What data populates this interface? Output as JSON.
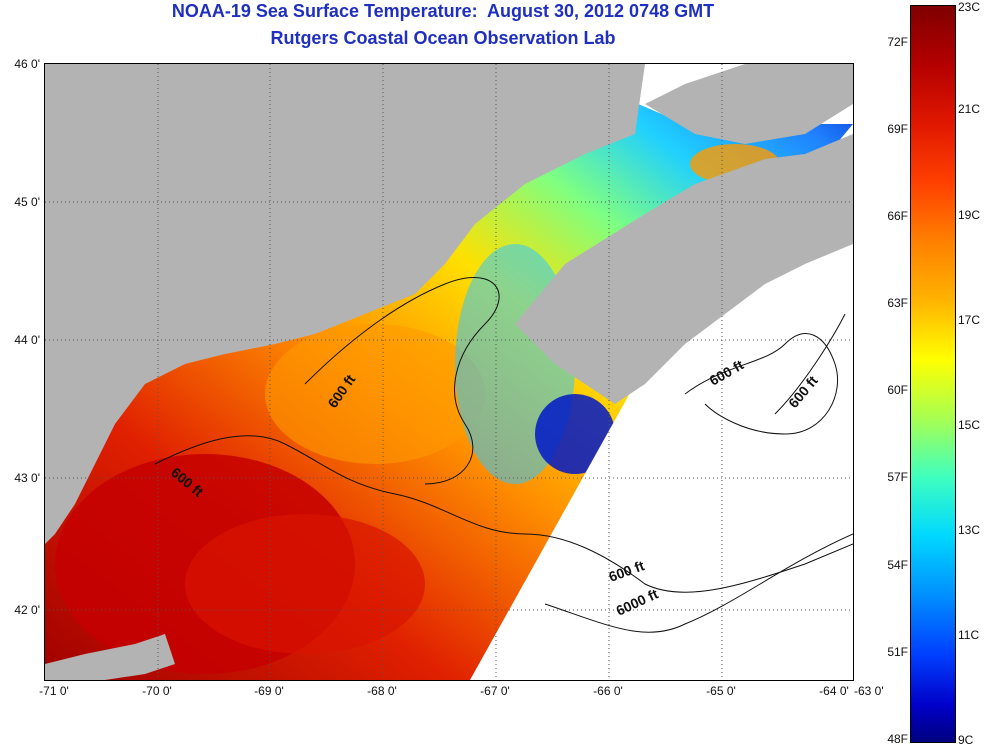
{
  "header": {
    "title": "NOAA-19 Sea Surface Temperature:  August 30, 2012 0748 GMT",
    "subtitle": "Rutgers Coastal Ocean Observation Lab"
  },
  "map": {
    "lat_labels": [
      "46 0'",
      "45 0'",
      "44 0'",
      "43 0'",
      "42 0'"
    ],
    "lon_labels": [
      "-71 0'",
      "-70 0'",
      "-69 0'",
      "-68 0'",
      "-67 0'",
      "-66 0'",
      "-65 0'",
      "-64 0'",
      "-63 0'"
    ],
    "contour_labels": [
      "600 ft",
      "600 ft",
      "600 ft",
      "600 ft",
      "600 ft",
      "6000 ft"
    ],
    "land_color": "#b3b3b3",
    "no_data_color": "#ffffff"
  },
  "colorbar": {
    "fahrenheit_labels": [
      "72F",
      "69F",
      "66F",
      "63F",
      "60F",
      "57F",
      "54F",
      "51F",
      "48F"
    ],
    "celsius_labels": [
      "23C",
      "21C",
      "19C",
      "17C",
      "15C",
      "13C",
      "11C",
      "9C"
    ],
    "range_c": [
      9,
      23
    ],
    "range_f": [
      48,
      72
    ],
    "colormap": "jet"
  }
}
